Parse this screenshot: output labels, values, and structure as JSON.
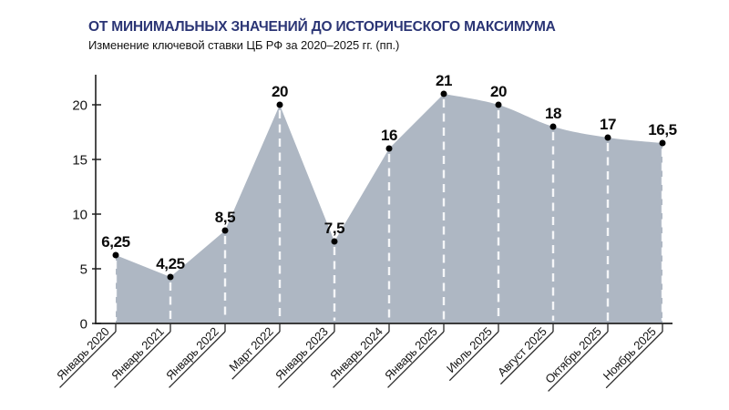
{
  "header": {
    "title": "ОТ МИНИМАЛЬНЫХ ЗНАЧЕНИЙ ДО ИСТОРИЧЕСКОГО МАКСИМУМА",
    "subtitle": "Изменение ключевой ставки ЦБ РФ за 2020–2025 гг. (пп.)"
  },
  "colors": {
    "title_text": "#2b3575",
    "area_fill": "#aeb7c3",
    "axis": "#1f1f1f",
    "tick_connector": "#2a2a2a",
    "dashed_guide": "rgba(255,255,255,0.88)",
    "point_dot": "#000000",
    "label_text": "#141414"
  },
  "chart_data": {
    "type": "area",
    "title": "ОТ МИНИМАЛЬНЫХ ЗНАЧЕНИЙ ДО ИСТОРИЧЕСКОГО МАКСИМУМА",
    "subtitle": "Изменение ключевой ставки ЦБ РФ за 2020–2025 гг. (пп.)",
    "categories": [
      "Январь 2020",
      "Январь 2021",
      "Январь 2022",
      "Март 2022",
      "Январь 2023",
      "Январь 2024",
      "Январь 2025",
      "Июль 2025",
      "Август 2025",
      "Октябрь 2025",
      "Ноябрь 2025"
    ],
    "values": [
      6.25,
      4.25,
      8.5,
      20,
      7.5,
      16,
      21,
      20,
      18,
      17,
      16.5
    ],
    "value_labels": [
      "6,25",
      "4,25",
      "8,5",
      "20",
      "7,5",
      "16",
      "21",
      "20",
      "18",
      "17",
      "16,5"
    ],
    "xlabel": "",
    "ylabel": "",
    "ylim": [
      0,
      22.5
    ],
    "yticks": [
      0,
      5,
      10,
      15,
      20
    ],
    "grid": false,
    "legend": null,
    "guides": "white dashed vertical line from each point to baseline",
    "smooth_from_category": "Январь 2025"
  }
}
